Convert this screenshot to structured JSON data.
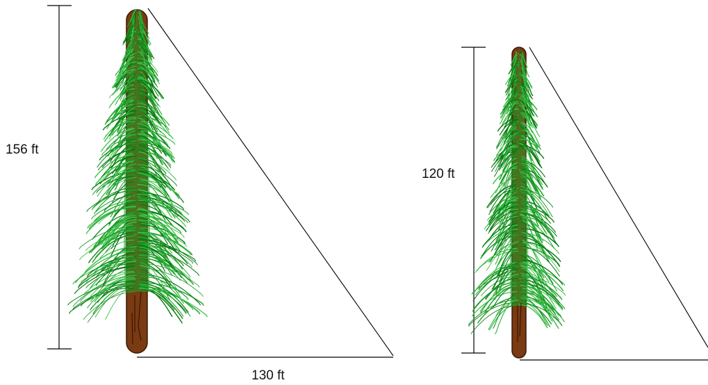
{
  "figure": {
    "left_tree": {
      "height_label": "156 ft",
      "shadow_label": "130 ft"
    },
    "right_tree": {
      "height_label": "120 ft"
    }
  },
  "colors": {
    "foliage_dark": "#0a7a12",
    "foliage_mid": "#1fa02a",
    "foliage_light": "#3cc048",
    "trunk": "#7a3a12",
    "trunk_outline": "#3a1a06",
    "line": "#000000"
  }
}
